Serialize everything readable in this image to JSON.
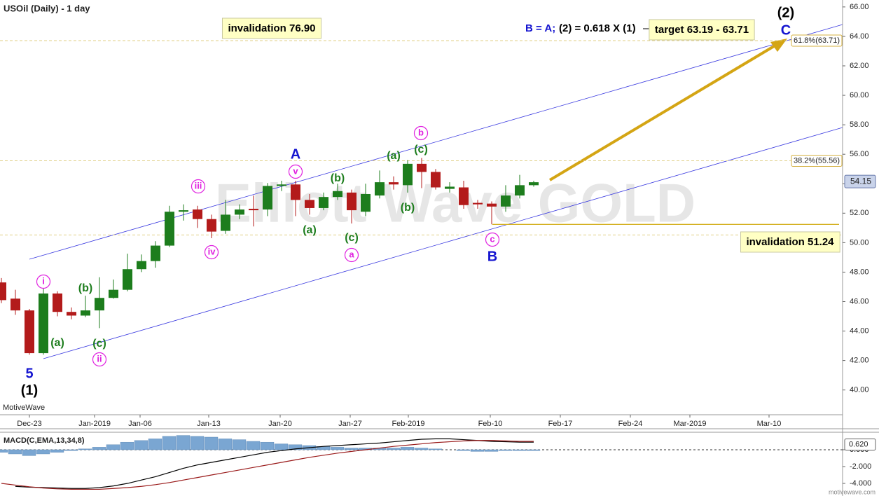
{
  "chart_data": {
    "type": "candlestick",
    "title": "USOil (Daily) - 1 day",
    "watermark": "Elliott Wave GOLD",
    "brand": "MotiveWave",
    "footer": "motivewave.com",
    "up_color": "#1d7d1d",
    "down_color": "#b31b1b",
    "xlim": [
      -0.1,
      60.05
    ],
    "xticks": [
      {
        "value": 2,
        "label": "Dec-23"
      },
      {
        "value": 6.65,
        "label": "Jan-2019"
      },
      {
        "value": 9.9,
        "label": "Jan-06"
      },
      {
        "value": 14.8,
        "label": "Jan-13"
      },
      {
        "value": 19.9,
        "label": "Jan-20"
      },
      {
        "value": 24.9,
        "label": "Jan-27"
      },
      {
        "value": 29.05,
        "label": "Feb-2019"
      },
      {
        "value": 34.9,
        "label": "Feb-10"
      },
      {
        "value": 39.9,
        "label": "Feb-17"
      },
      {
        "value": 44.9,
        "label": "Feb-24"
      },
      {
        "value": 49.15,
        "label": "Mar-2019"
      },
      {
        "value": 54.8,
        "label": "Mar-10"
      }
    ],
    "ylim": [
      38.32,
      66.47
    ],
    "yticks": [
      {
        "value": 40,
        "label": "40.00"
      },
      {
        "value": 42,
        "label": "42.00"
      },
      {
        "value": 44,
        "label": "44.00"
      },
      {
        "value": 46,
        "label": "46.00"
      },
      {
        "value": 48,
        "label": "48.00"
      },
      {
        "value": 50,
        "label": "50.00"
      },
      {
        "value": 52,
        "label": "52.00"
      },
      {
        "value": 54,
        "label": "54.00"
      },
      {
        "value": 56,
        "label": "56.00"
      },
      {
        "value": 58,
        "label": "58.00"
      },
      {
        "value": 60,
        "label": "60.00"
      },
      {
        "value": 62,
        "label": "62.00"
      },
      {
        "value": 64,
        "label": "64.00"
      },
      {
        "value": 66,
        "label": "66.00"
      }
    ],
    "x": [
      0,
      1,
      2,
      3,
      4,
      5,
      6,
      7,
      8,
      9,
      10,
      11,
      12,
      13,
      14,
      15,
      16,
      17,
      18,
      19,
      20,
      21,
      22,
      23,
      24,
      25,
      26,
      27,
      28,
      29,
      30,
      31,
      32,
      33,
      34,
      35,
      36,
      37,
      38
    ],
    "open": [
      47.3,
      46.2,
      45.4,
      42.5,
      46.55,
      45.3,
      45.05,
      45.4,
      46.25,
      46.8,
      48.2,
      48.75,
      49.8,
      52.1,
      52.25,
      51.6,
      50.8,
      51.9,
      52.3,
      52.25,
      53.85,
      53.95,
      52.9,
      52.35,
      53.1,
      53.4,
      52.1,
      53.2,
      54.1,
      53.9,
      55.35,
      54.8,
      53.65,
      53.75,
      52.7,
      52.65,
      52.45,
      53.2,
      53.9
    ],
    "high": [
      47.6,
      46.8,
      45.5,
      46.9,
      46.7,
      45.6,
      46.4,
      47.65,
      47.5,
      49.25,
      49.2,
      50.1,
      52.5,
      52.6,
      52.5,
      51.9,
      52.9,
      52.6,
      53.2,
      54.05,
      54.2,
      54.2,
      53.3,
      53.4,
      54.0,
      53.6,
      54.0,
      54.9,
      54.5,
      55.6,
      55.75,
      55.0,
      54.1,
      54.2,
      52.9,
      52.8,
      53.9,
      54.6,
      54.2
    ],
    "low": [
      45.9,
      45.1,
      42.4,
      42.4,
      45.0,
      44.8,
      44.95,
      44.2,
      46.2,
      46.7,
      48.0,
      48.3,
      49.7,
      51.5,
      51.0,
      50.3,
      50.6,
      51.6,
      51.1,
      51.8,
      53.5,
      51.8,
      51.9,
      52.2,
      52.9,
      51.3,
      51.8,
      53.0,
      53.6,
      53.4,
      53.7,
      53.6,
      53.4,
      52.3,
      52.3,
      51.24,
      52.1,
      53.0,
      53.8
    ],
    "close": [
      46.1,
      45.4,
      42.5,
      46.55,
      45.3,
      45.05,
      45.4,
      46.25,
      46.8,
      48.2,
      48.75,
      49.8,
      52.1,
      52.2,
      51.6,
      50.75,
      51.9,
      52.25,
      52.2,
      53.85,
      53.95,
      52.9,
      52.35,
      53.1,
      53.5,
      52.2,
      53.3,
      54.1,
      53.95,
      55.35,
      54.8,
      53.75,
      53.8,
      52.55,
      52.6,
      52.45,
      53.2,
      53.9,
      54.1
    ],
    "last_price": 54.15,
    "levels": [
      {
        "name": "61.8%(63.71)",
        "value": 63.71
      },
      {
        "name": "38.2%(55.56)",
        "value": 55.56
      },
      {
        "value": 50.52
      }
    ],
    "invalidation_level": 51.24,
    "annotations": [
      "invalidation 76.90",
      "B = A;",
      "(2) = 0.618 X (1)",
      "target 63.19 - 63.71",
      "(2)",
      "C",
      "A",
      "v",
      "(a)",
      "b",
      "(c)",
      "iii",
      "(b)",
      "(b)",
      "(a)",
      "(c)",
      "a",
      "iv",
      "c",
      "B",
      "i",
      "(b)",
      "(a)",
      "(c)",
      "ii",
      "5",
      "(1)",
      "invalidation 51.24"
    ],
    "macd": {
      "title": "MACD(C,EMA,13,34,8)",
      "ylim": [
        -5.33,
        2.08
      ],
      "yticks": [
        {
          "value": 0,
          "label": "0.000"
        },
        {
          "value": -2,
          "label": "-2.000"
        },
        {
          "value": -4,
          "label": "-4.000"
        }
      ],
      "last_value": {
        "value": 0.62,
        "label": "0.620"
      },
      "histogram": {
        "color": "#7aa6d2",
        "values": [
          -0.3,
          -0.5,
          -0.7,
          -0.5,
          -0.3,
          -0.1,
          0.1,
          0.3,
          0.6,
          0.9,
          1.1,
          1.3,
          1.6,
          1.7,
          1.6,
          1.5,
          1.3,
          1.2,
          1.0,
          0.9,
          0.7,
          0.6,
          0.5,
          0.4,
          0.3,
          0.2,
          0.2,
          0.2,
          0.2,
          0.3,
          0.2,
          0.1,
          0,
          -0.1,
          -0.2,
          -0.2,
          -0.1,
          -0.1,
          -0.1
        ]
      },
      "series": [
        {
          "color": "#000000",
          "values": [
            null,
            -4.35,
            -4.45,
            -4.5,
            -4.55,
            -4.6,
            -4.6,
            -4.5,
            -4.3,
            -4.0,
            -3.6,
            -3.2,
            -2.7,
            -2.2,
            -1.8,
            -1.5,
            -1.2,
            -0.9,
            -0.6,
            -0.3,
            -0.1,
            0.1,
            0.25,
            0.4,
            0.5,
            0.6,
            0.7,
            0.8,
            0.95,
            1.1,
            1.25,
            1.3,
            1.3,
            1.2,
            1.1,
            1.0,
            0.95,
            0.9,
            0.9
          ]
        },
        {
          "color": "#9a1b1b",
          "values": [
            -4.0,
            -4.2,
            -4.4,
            -4.55,
            -4.65,
            -4.7,
            -4.7,
            -4.7,
            -4.6,
            -4.5,
            -4.35,
            -4.15,
            -3.9,
            -3.6,
            -3.3,
            -3.0,
            -2.7,
            -2.4,
            -2.1,
            -1.8,
            -1.5,
            -1.2,
            -0.9,
            -0.65,
            -0.4,
            -0.2,
            0,
            0.2,
            0.4,
            0.55,
            0.7,
            0.85,
            0.95,
            1.05,
            1.1,
            1.1,
            1.05,
            1.0,
            1.0
          ]
        }
      ]
    }
  }
}
